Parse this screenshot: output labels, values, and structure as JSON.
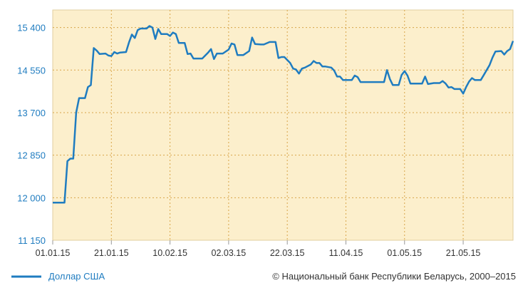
{
  "chart_data": {
    "type": "line",
    "ylim": [
      11150,
      15750
    ],
    "yticks": [
      11150,
      12000,
      12850,
      13700,
      14550,
      15400
    ],
    "ytick_labels": [
      "11 150",
      "12 000",
      "12 850",
      "13 700",
      "14 550",
      "15 400"
    ],
    "xlim": [
      "2015-01-01",
      "2015-06-07"
    ],
    "xticks": [
      "2015-01-01",
      "2015-01-21",
      "2015-02-10",
      "2015-03-02",
      "2015-03-22",
      "2015-04-11",
      "2015-05-01",
      "2015-05-21"
    ],
    "xtick_labels": [
      "01.01.15",
      "21.01.15",
      "10.02.15",
      "02.03.15",
      "22.03.15",
      "11.04.15",
      "01.05.15",
      "21.05.15"
    ],
    "grid": true,
    "legend_position": "bottom-left",
    "series": [
      {
        "name": "Доллар США",
        "color": "#1f7cc0",
        "points": [
          [
            "2015-01-01",
            11900
          ],
          [
            "2015-01-05",
            11900
          ],
          [
            "2015-01-06",
            12730
          ],
          [
            "2015-01-07",
            12780
          ],
          [
            "2015-01-08",
            12780
          ],
          [
            "2015-01-09",
            13700
          ],
          [
            "2015-01-10",
            13990
          ],
          [
            "2015-01-12",
            13990
          ],
          [
            "2015-01-13",
            14210
          ],
          [
            "2015-01-14",
            14250
          ],
          [
            "2015-01-15",
            14990
          ],
          [
            "2015-01-16",
            14940
          ],
          [
            "2015-01-17",
            14870
          ],
          [
            "2015-01-19",
            14880
          ],
          [
            "2015-01-20",
            14840
          ],
          [
            "2015-01-21",
            14830
          ],
          [
            "2015-01-22",
            14910
          ],
          [
            "2015-01-23",
            14880
          ],
          [
            "2015-01-24",
            14900
          ],
          [
            "2015-01-26",
            14910
          ],
          [
            "2015-01-27",
            15100
          ],
          [
            "2015-01-28",
            15260
          ],
          [
            "2015-01-29",
            15190
          ],
          [
            "2015-01-30",
            15350
          ],
          [
            "2015-01-31",
            15380
          ],
          [
            "2015-02-02",
            15380
          ],
          [
            "2015-02-03",
            15430
          ],
          [
            "2015-02-04",
            15400
          ],
          [
            "2015-02-05",
            15170
          ],
          [
            "2015-02-06",
            15370
          ],
          [
            "2015-02-07",
            15270
          ],
          [
            "2015-02-09",
            15270
          ],
          [
            "2015-02-10",
            15230
          ],
          [
            "2015-02-11",
            15300
          ],
          [
            "2015-02-12",
            15270
          ],
          [
            "2015-02-13",
            15090
          ],
          [
            "2015-02-15",
            15090
          ],
          [
            "2015-02-16",
            14870
          ],
          [
            "2015-02-17",
            14880
          ],
          [
            "2015-02-18",
            14780
          ],
          [
            "2015-02-20",
            14780
          ],
          [
            "2015-02-21",
            14780
          ],
          [
            "2015-02-23",
            14900
          ],
          [
            "2015-02-24",
            14970
          ],
          [
            "2015-02-25",
            14770
          ],
          [
            "2015-02-26",
            14880
          ],
          [
            "2015-02-27",
            14880
          ],
          [
            "2015-02-28",
            14880
          ],
          [
            "2015-03-02",
            14960
          ],
          [
            "2015-03-03",
            15080
          ],
          [
            "2015-03-04",
            15060
          ],
          [
            "2015-03-05",
            14850
          ],
          [
            "2015-03-07",
            14850
          ],
          [
            "2015-03-09",
            14930
          ],
          [
            "2015-03-10",
            15200
          ],
          [
            "2015-03-11",
            15070
          ],
          [
            "2015-03-13",
            15060
          ],
          [
            "2015-03-14",
            15060
          ],
          [
            "2015-03-16",
            15110
          ],
          [
            "2015-03-18",
            15110
          ],
          [
            "2015-03-19",
            14790
          ],
          [
            "2015-03-20",
            14810
          ],
          [
            "2015-03-21",
            14810
          ],
          [
            "2015-03-23",
            14690
          ],
          [
            "2015-03-24",
            14580
          ],
          [
            "2015-03-25",
            14560
          ],
          [
            "2015-03-26",
            14480
          ],
          [
            "2015-03-27",
            14580
          ],
          [
            "2015-03-28",
            14600
          ],
          [
            "2015-03-30",
            14660
          ],
          [
            "2015-03-31",
            14730
          ],
          [
            "2015-04-01",
            14690
          ],
          [
            "2015-04-02",
            14690
          ],
          [
            "2015-04-03",
            14620
          ],
          [
            "2015-04-04",
            14620
          ],
          [
            "2015-04-06",
            14600
          ],
          [
            "2015-04-07",
            14540
          ],
          [
            "2015-04-08",
            14420
          ],
          [
            "2015-04-09",
            14420
          ],
          [
            "2015-04-10",
            14350
          ],
          [
            "2015-04-13",
            14350
          ],
          [
            "2015-04-14",
            14440
          ],
          [
            "2015-04-15",
            14410
          ],
          [
            "2015-04-16",
            14310
          ],
          [
            "2015-04-18",
            14310
          ],
          [
            "2015-04-20",
            14310
          ],
          [
            "2015-04-21",
            14310
          ],
          [
            "2015-04-24",
            14310
          ],
          [
            "2015-04-25",
            14550
          ],
          [
            "2015-04-26",
            14370
          ],
          [
            "2015-04-27",
            14250
          ],
          [
            "2015-04-29",
            14250
          ],
          [
            "2015-04-30",
            14450
          ],
          [
            "2015-05-01",
            14530
          ],
          [
            "2015-05-02",
            14440
          ],
          [
            "2015-05-03",
            14280
          ],
          [
            "2015-05-04",
            14280
          ],
          [
            "2015-05-07",
            14280
          ],
          [
            "2015-05-08",
            14420
          ],
          [
            "2015-05-09",
            14270
          ],
          [
            "2015-05-11",
            14290
          ],
          [
            "2015-05-13",
            14290
          ],
          [
            "2015-05-14",
            14330
          ],
          [
            "2015-05-15",
            14280
          ],
          [
            "2015-05-16",
            14200
          ],
          [
            "2015-05-17",
            14210
          ],
          [
            "2015-05-18",
            14170
          ],
          [
            "2015-05-20",
            14170
          ],
          [
            "2015-05-21",
            14080
          ],
          [
            "2015-05-22",
            14210
          ],
          [
            "2015-05-23",
            14320
          ],
          [
            "2015-05-24",
            14390
          ],
          [
            "2015-05-25",
            14350
          ],
          [
            "2015-05-27",
            14350
          ],
          [
            "2015-05-28",
            14450
          ],
          [
            "2015-05-30",
            14650
          ],
          [
            "2015-05-31",
            14800
          ],
          [
            "2015-06-01",
            14920
          ],
          [
            "2015-06-03",
            14930
          ],
          [
            "2015-06-04",
            14860
          ],
          [
            "2015-06-05",
            14930
          ],
          [
            "2015-06-06",
            14970
          ],
          [
            "2015-06-07",
            15130
          ]
        ]
      }
    ],
    "credit": "© Национальный банк Республики Беларусь, 2000–2015"
  }
}
